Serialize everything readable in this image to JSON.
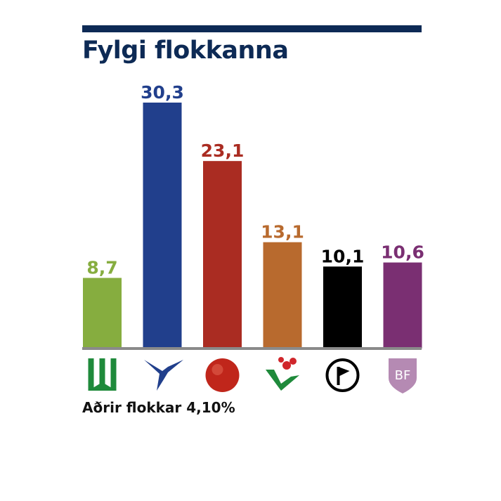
{
  "chart_data": {
    "type": "bar",
    "title": "Fylgi flokkanna",
    "xlabel": "",
    "ylabel": "",
    "ylim": [
      0,
      32
    ],
    "grid": false,
    "legend": "none",
    "categories": [
      "green-party-icon",
      "eagle-party-icon",
      "red-sphere-party-icon",
      "flower-v-party-icon",
      "pirate-flag-party-icon",
      "bf-shield-party-icon"
    ],
    "values": [
      8.7,
      30.3,
      23.1,
      13.1,
      10.1,
      10.6
    ],
    "value_labels": [
      "8,7",
      "30,3",
      "23,1",
      "13,1",
      "10,1",
      "10,6"
    ],
    "colors": [
      "#86ad3f",
      "#213f8c",
      "#aa2c22",
      "#b86a2e",
      "#000000",
      "#7a2f72"
    ],
    "note": "Aðrir flokkar 4,10%"
  },
  "colors": {
    "title": "#0d2a55",
    "rule": "#0d2a55",
    "baseline": "#8a8a8a"
  }
}
